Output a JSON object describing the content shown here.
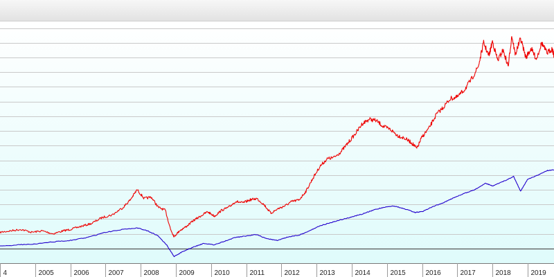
{
  "chart_data": {
    "type": "line",
    "x_ticks": [
      "4",
      "2005",
      "2006",
      "2007",
      "2008",
      "2009",
      "2010",
      "2011",
      "2012",
      "2013",
      "2014",
      "2015",
      "2016",
      "2017",
      "2018",
      "2019"
    ],
    "xlim": [
      2004.0,
      2019.75
    ],
    "ylim": [
      0,
      16.5
    ],
    "grid": true,
    "reference_line": 1.0,
    "series": [
      {
        "color": "#ee0000",
        "points": [
          [
            2004.0,
            2.1
          ],
          [
            2004.3,
            2.2
          ],
          [
            2004.6,
            2.3
          ],
          [
            2004.9,
            2.1
          ],
          [
            2005.2,
            2.2
          ],
          [
            2005.5,
            2.0
          ],
          [
            2005.8,
            2.2
          ],
          [
            2006.0,
            2.3
          ],
          [
            2006.3,
            2.5
          ],
          [
            2006.6,
            2.7
          ],
          [
            2006.9,
            3.1
          ],
          [
            2007.2,
            3.3
          ],
          [
            2007.5,
            3.8
          ],
          [
            2007.7,
            4.3
          ],
          [
            2007.9,
            5.0
          ],
          [
            2008.1,
            4.4
          ],
          [
            2008.3,
            4.5
          ],
          [
            2008.5,
            3.8
          ],
          [
            2008.7,
            3.6
          ],
          [
            2008.85,
            2.3
          ],
          [
            2008.95,
            1.8
          ],
          [
            2009.1,
            2.2
          ],
          [
            2009.3,
            2.5
          ],
          [
            2009.5,
            2.9
          ],
          [
            2009.7,
            3.2
          ],
          [
            2009.9,
            3.5
          ],
          [
            2010.1,
            3.2
          ],
          [
            2010.3,
            3.6
          ],
          [
            2010.5,
            3.8
          ],
          [
            2010.7,
            4.2
          ],
          [
            2010.9,
            4.1
          ],
          [
            2011.1,
            4.3
          ],
          [
            2011.3,
            4.4
          ],
          [
            2011.5,
            4.0
          ],
          [
            2011.7,
            3.4
          ],
          [
            2011.9,
            3.7
          ],
          [
            2012.1,
            3.9
          ],
          [
            2012.3,
            4.2
          ],
          [
            2012.5,
            4.3
          ],
          [
            2012.7,
            4.9
          ],
          [
            2012.9,
            5.8
          ],
          [
            2013.1,
            6.6
          ],
          [
            2013.3,
            7.1
          ],
          [
            2013.5,
            7.2
          ],
          [
            2013.7,
            7.6
          ],
          [
            2013.9,
            8.2
          ],
          [
            2014.1,
            8.8
          ],
          [
            2014.3,
            9.5
          ],
          [
            2014.5,
            9.8
          ],
          [
            2014.7,
            9.7
          ],
          [
            2014.9,
            9.3
          ],
          [
            2015.1,
            9.1
          ],
          [
            2015.3,
            8.7
          ],
          [
            2015.5,
            8.5
          ],
          [
            2015.7,
            8.2
          ],
          [
            2015.85,
            7.8
          ],
          [
            2016.0,
            8.6
          ],
          [
            2016.2,
            9.2
          ],
          [
            2016.4,
            10.1
          ],
          [
            2016.6,
            10.6
          ],
          [
            2016.8,
            11.2
          ],
          [
            2017.0,
            11.3
          ],
          [
            2017.2,
            11.8
          ],
          [
            2017.4,
            12.5
          ],
          [
            2017.6,
            13.4
          ],
          [
            2017.75,
            15.0
          ],
          [
            2017.9,
            14.1
          ],
          [
            2018.0,
            15.1
          ],
          [
            2018.15,
            13.8
          ],
          [
            2018.3,
            14.5
          ],
          [
            2018.45,
            13.4
          ],
          [
            2018.55,
            15.5
          ],
          [
            2018.65,
            14.2
          ],
          [
            2018.8,
            15.3
          ],
          [
            2018.95,
            14.0
          ],
          [
            2019.1,
            14.6
          ],
          [
            2019.25,
            13.9
          ],
          [
            2019.4,
            15.0
          ],
          [
            2019.55,
            14.3
          ],
          [
            2019.7,
            14.6
          ],
          [
            2019.75,
            14.1
          ]
        ]
      },
      {
        "color": "#2200cc",
        "points": [
          [
            2004.0,
            1.15
          ],
          [
            2004.5,
            1.25
          ],
          [
            2005.0,
            1.3
          ],
          [
            2005.5,
            1.45
          ],
          [
            2006.0,
            1.55
          ],
          [
            2006.5,
            1.75
          ],
          [
            2007.0,
            2.1
          ],
          [
            2007.5,
            2.3
          ],
          [
            2007.9,
            2.4
          ],
          [
            2008.2,
            2.2
          ],
          [
            2008.5,
            1.85
          ],
          [
            2008.75,
            1.2
          ],
          [
            2008.95,
            0.45
          ],
          [
            2009.2,
            0.8
          ],
          [
            2009.5,
            1.1
          ],
          [
            2009.8,
            1.35
          ],
          [
            2010.1,
            1.25
          ],
          [
            2010.4,
            1.5
          ],
          [
            2010.7,
            1.75
          ],
          [
            2011.0,
            1.85
          ],
          [
            2011.3,
            1.95
          ],
          [
            2011.6,
            1.65
          ],
          [
            2011.9,
            1.55
          ],
          [
            2012.2,
            1.8
          ],
          [
            2012.5,
            1.9
          ],
          [
            2012.8,
            2.2
          ],
          [
            2013.1,
            2.55
          ],
          [
            2013.4,
            2.75
          ],
          [
            2013.7,
            2.95
          ],
          [
            2014.0,
            3.15
          ],
          [
            2014.3,
            3.35
          ],
          [
            2014.6,
            3.6
          ],
          [
            2014.9,
            3.8
          ],
          [
            2015.2,
            3.9
          ],
          [
            2015.5,
            3.7
          ],
          [
            2015.8,
            3.45
          ],
          [
            2016.0,
            3.5
          ],
          [
            2016.3,
            3.85
          ],
          [
            2016.6,
            4.1
          ],
          [
            2016.9,
            4.45
          ],
          [
            2017.2,
            4.75
          ],
          [
            2017.5,
            5.0
          ],
          [
            2017.8,
            5.45
          ],
          [
            2018.0,
            5.25
          ],
          [
            2018.3,
            5.55
          ],
          [
            2018.6,
            5.9
          ],
          [
            2018.8,
            4.9
          ],
          [
            2019.0,
            5.7
          ],
          [
            2019.3,
            6.0
          ],
          [
            2019.55,
            6.3
          ],
          [
            2019.75,
            6.35
          ]
        ]
      }
    ]
  }
}
